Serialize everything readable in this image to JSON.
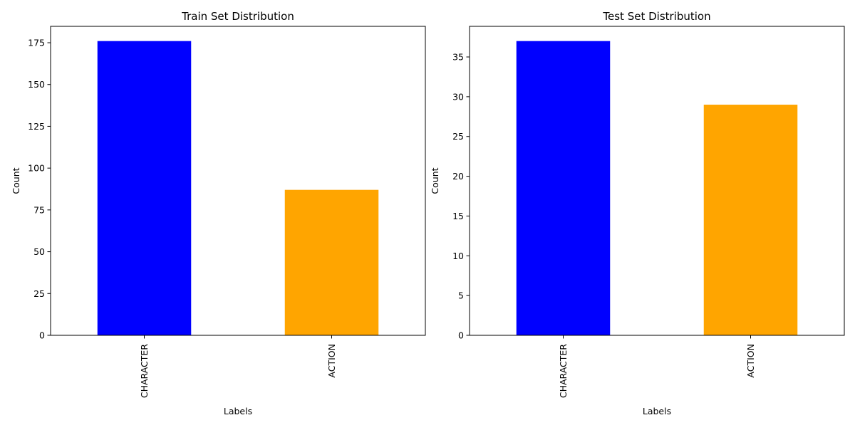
{
  "chart_data": [
    {
      "type": "bar",
      "title": "Train Set Distribution",
      "xlabel": "Labels",
      "ylabel": "Count",
      "categories": [
        "CHARACTER",
        "ACTION"
      ],
      "values": [
        176,
        87
      ],
      "colors": [
        "#0000ff",
        "#ffa500"
      ],
      "ylim": [
        0,
        184.8
      ],
      "yticks": [
        0,
        25,
        50,
        75,
        100,
        125,
        150,
        175
      ],
      "grid": false,
      "legend": "none"
    },
    {
      "type": "bar",
      "title": "Test Set Distribution",
      "xlabel": "Labels",
      "ylabel": "Count",
      "categories": [
        "CHARACTER",
        "ACTION"
      ],
      "values": [
        37,
        29
      ],
      "colors": [
        "#0000ff",
        "#ffa500"
      ],
      "ylim": [
        0,
        38.85
      ],
      "yticks": [
        0,
        5,
        10,
        15,
        20,
        25,
        30,
        35
      ],
      "grid": false,
      "legend": "none"
    }
  ]
}
